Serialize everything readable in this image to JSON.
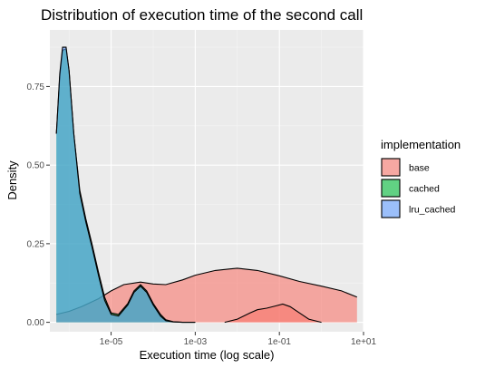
{
  "chart_data": {
    "type": "area",
    "subtype": "density",
    "title": "Distribution of execution time of the second call",
    "xlabel": "Execution time (log scale)",
    "ylabel": "Density",
    "x_scale": "log10",
    "xlim": [
      3.5e-07,
      10
    ],
    "ylim": [
      -0.03,
      0.93
    ],
    "x_ticks": [
      {
        "value": 1e-05,
        "label": "1e-05"
      },
      {
        "value": 0.001,
        "label": "1e-03"
      },
      {
        "value": 0.1,
        "label": "1e-01"
      },
      {
        "value": 10,
        "label": "1e+01"
      }
    ],
    "y_ticks": [
      {
        "value": 0.0,
        "label": "0.00"
      },
      {
        "value": 0.25,
        "label": "0.25"
      },
      {
        "value": 0.5,
        "label": "0.50"
      },
      {
        "value": 0.75,
        "label": "0.75"
      }
    ],
    "grid": true,
    "legend": {
      "title": "implementation",
      "position": "right",
      "entries": [
        "base",
        "cached",
        "lru_cached"
      ]
    },
    "series": [
      {
        "name": "base",
        "color": "#F8766D",
        "x": [
          5e-07,
          1e-06,
          2e-06,
          5e-06,
          1e-05,
          2e-05,
          5e-05,
          0.0001,
          0.0002,
          0.0005,
          0.001,
          0.003,
          0.01,
          0.03,
          0.1,
          0.3,
          1,
          3,
          7
        ],
        "y": [
          0.025,
          0.035,
          0.05,
          0.075,
          0.1,
          0.12,
          0.128,
          0.122,
          0.12,
          0.135,
          0.15,
          0.165,
          0.172,
          0.165,
          0.148,
          0.13,
          0.115,
          0.1,
          0.08
        ]
      },
      {
        "name": "cached",
        "color": "#00BA38",
        "x": [
          5e-07,
          6e-07,
          7e-07,
          8.5e-07,
          1e-06,
          1.3e-06,
          1.8e-06,
          2.5e-06,
          3.5e-06,
          5e-06,
          7e-06,
          1e-05,
          1.5e-05,
          2.5e-05,
          3.5e-05,
          5e-05,
          7e-05,
          0.0001,
          0.00015,
          0.0002,
          0.0003,
          0.0005,
          0.0007,
          0.001
        ],
        "y": [
          0.6,
          0.78,
          0.865,
          0.87,
          0.8,
          0.6,
          0.42,
          0.33,
          0.25,
          0.16,
          0.08,
          0.03,
          0.025,
          0.06,
          0.1,
          0.12,
          0.1,
          0.06,
          0.025,
          0.008,
          0.002,
          0,
          0,
          0
        ]
      },
      {
        "name": "lru_cached",
        "color": "#619CFF",
        "x": [
          5e-07,
          6e-07,
          7e-07,
          8.5e-07,
          1e-06,
          1.3e-06,
          1.8e-06,
          2.5e-06,
          3.5e-06,
          5e-06,
          7e-06,
          1e-05,
          1.5e-05,
          2.5e-05,
          3.5e-05,
          5e-05,
          7e-05,
          0.0001,
          0.00015,
          0.0002,
          0.0003,
          0.0005,
          0.0007,
          0.001
        ],
        "y": [
          0.6,
          0.79,
          0.875,
          0.875,
          0.8,
          0.6,
          0.41,
          0.32,
          0.24,
          0.15,
          0.07,
          0.025,
          0.02,
          0.055,
          0.095,
          0.115,
          0.095,
          0.055,
          0.02,
          0.005,
          0.001,
          0,
          0,
          0
        ]
      },
      {
        "name": "base (lower mode)",
        "legend": false,
        "color": "#F8766D",
        "x": [
          0.005,
          0.01,
          0.02,
          0.03,
          0.05,
          0.08,
          0.12,
          0.18,
          0.3,
          0.5,
          1
        ],
        "y": [
          0,
          0.01,
          0.03,
          0.04,
          0.045,
          0.052,
          0.058,
          0.05,
          0.03,
          0.01,
          0
        ]
      }
    ]
  }
}
